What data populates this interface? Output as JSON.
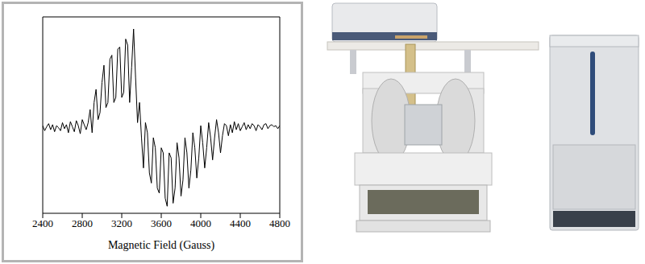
{
  "chart_data": {
    "type": "line",
    "xlabel": "Magnetic Field (Gauss)",
    "color": "#000000",
    "grid": false,
    "tick_labels": "x",
    "xlim": [
      2400,
      4800
    ],
    "xticks": [
      2400,
      2800,
      3200,
      3600,
      4000,
      4400,
      4800
    ],
    "ylim": [
      -8.5,
      11
    ],
    "x": [
      2400,
      2420,
      2440,
      2460,
      2480,
      2500,
      2520,
      2540,
      2560,
      2580,
      2600,
      2620,
      2640,
      2660,
      2680,
      2700,
      2720,
      2740,
      2760,
      2780,
      2800,
      2820,
      2840,
      2860,
      2880,
      2900,
      2920,
      2940,
      2960,
      2980,
      3000,
      3020,
      3040,
      3060,
      3080,
      3100,
      3120,
      3140,
      3160,
      3180,
      3200,
      3220,
      3240,
      3260,
      3280,
      3300,
      3320,
      3340,
      3360,
      3380,
      3400,
      3420,
      3440,
      3460,
      3480,
      3500,
      3520,
      3540,
      3560,
      3580,
      3600,
      3620,
      3640,
      3660,
      3680,
      3700,
      3720,
      3740,
      3760,
      3780,
      3800,
      3820,
      3840,
      3860,
      3880,
      3900,
      3920,
      3940,
      3960,
      3980,
      4000,
      4020,
      4040,
      4060,
      4080,
      4100,
      4120,
      4140,
      4160,
      4180,
      4200,
      4220,
      4240,
      4260,
      4280,
      4300,
      4320,
      4340,
      4360,
      4380,
      4400,
      4420,
      4440,
      4460,
      4480,
      4500,
      4520,
      4540,
      4560,
      4580,
      4600,
      4620,
      4640,
      4660,
      4680,
      4700,
      4720,
      4740,
      4760,
      4780,
      4800
    ],
    "values": [
      0.2,
      -0.3,
      0.1,
      0.4,
      -0.2,
      0.3,
      -0.4,
      0.2,
      0,
      -0.3,
      0.5,
      -0.1,
      0.3,
      -0.5,
      0.6,
      0.1,
      -0.4,
      0.7,
      0.2,
      -0.6,
      0.8,
      0.3,
      -0.2,
      0.5,
      1.8,
      -0.5,
      2.5,
      3.8,
      0.8,
      1.5,
      4.5,
      6.2,
      2.0,
      2.5,
      6.8,
      7.2,
      2.5,
      3.0,
      7.8,
      8.0,
      3.0,
      3.5,
      8.8,
      8.2,
      2.5,
      6.0,
      9.8,
      5.0,
      0.5,
      2.5,
      -1.0,
      -4.0,
      0.5,
      -0.5,
      -4.5,
      -5.5,
      -1.0,
      -2.0,
      -6.0,
      -6.5,
      -2.0,
      -2.5,
      -7.0,
      -7.8,
      -2.5,
      -3.0,
      -7.5,
      -6.0,
      -1.5,
      -3.0,
      -6.8,
      -5.2,
      -1.0,
      -2.5,
      -6.0,
      -4.2,
      -0.5,
      -2.0,
      -5.0,
      -3.0,
      0.2,
      -1.5,
      -4.0,
      -2.0,
      0.5,
      -1.0,
      -3.2,
      -1.0,
      0.8,
      -0.5,
      -2.5,
      -0.8,
      0.4,
      0.2,
      -0.8,
      0.3,
      -0.5,
      0.6,
      -0.2,
      0.4,
      -0.3,
      0.1,
      0.5,
      -0.2,
      0.3,
      -0.1,
      0.4,
      0.2,
      -0.3,
      0.3,
      0.1,
      -0.2,
      0.3,
      0.4,
      -0.1,
      0.2,
      0.3,
      0.1,
      0.2,
      -0.1,
      0.2
    ]
  }
}
